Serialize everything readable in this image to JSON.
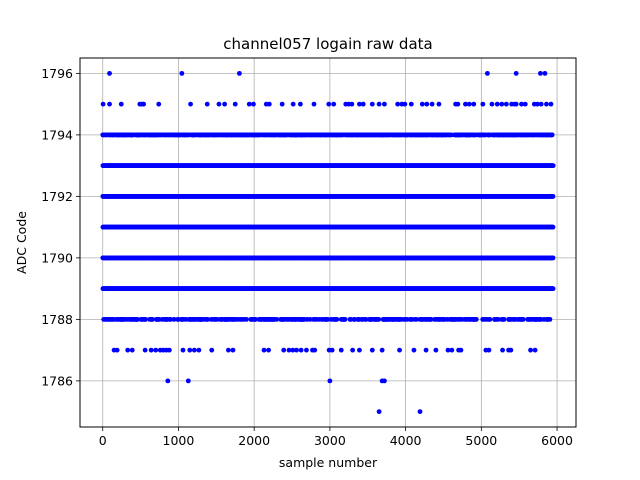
{
  "chart_data": {
    "type": "scatter",
    "title": "channel057 logain raw data",
    "xlabel": "sample number",
    "ylabel": "ADC Code",
    "xlim": [
      -300,
      6250
    ],
    "ylim": [
      1784.5,
      1796.5
    ],
    "xticks": [
      0,
      1000,
      2000,
      3000,
      4000,
      5000,
      6000
    ],
    "yticks": [
      1786,
      1788,
      1790,
      1792,
      1794,
      1796
    ],
    "grid": true,
    "marker_color": "#0000ff",
    "x_range": [
      0,
      5950
    ],
    "series": [
      {
        "dense_levels": [
          {
            "y": 1794,
            "density": 0.7
          },
          {
            "y": 1793,
            "density": 1.0
          },
          {
            "y": 1792,
            "density": 1.0
          },
          {
            "y": 1791,
            "density": 1.0
          },
          {
            "y": 1790,
            "density": 1.0
          },
          {
            "y": 1789,
            "density": 1.0
          },
          {
            "y": 1788,
            "density": 0.35
          }
        ],
        "sparse_points": {
          "1796": [
            90,
            1045,
            1805,
            5080,
            5460,
            5780,
            5840
          ],
          "1795": [
            5,
            90,
            245,
            490,
            520,
            540,
            740,
            1160,
            1380,
            1535,
            1610,
            1750,
            1935,
            1990,
            2160,
            2200,
            2370,
            2515,
            2610,
            2790,
            2985,
            3050,
            3210,
            3250,
            3290,
            3390,
            3440,
            3560,
            3650,
            3720,
            3895,
            3950,
            3990,
            4075,
            4220,
            4280,
            4350,
            4440,
            4660,
            4690,
            4790,
            4840,
            4900,
            5020,
            5140,
            5210,
            5270,
            5330,
            5400,
            5440,
            5460,
            5530,
            5580,
            5700,
            5740,
            5790,
            5860,
            5920
          ],
          "1787": [
            150,
            190,
            330,
            390,
            560,
            640,
            700,
            760,
            800,
            840,
            880,
            1060,
            1150,
            1210,
            1270,
            1440,
            1660,
            1720,
            2130,
            2190,
            2390,
            2460,
            2510,
            2560,
            2620,
            2690,
            2770,
            2800,
            2990,
            3030,
            3150,
            3300,
            3390,
            3560,
            3690,
            3920,
            4110,
            4270,
            4400,
            4560,
            4610,
            4700,
            4730,
            5060,
            5100,
            5280,
            5360,
            5390,
            5650,
            5710
          ],
          "1786": [
            860,
            1130,
            3000,
            3690,
            3720
          ],
          "1785": [
            3650,
            4190
          ]
        }
      }
    ]
  }
}
